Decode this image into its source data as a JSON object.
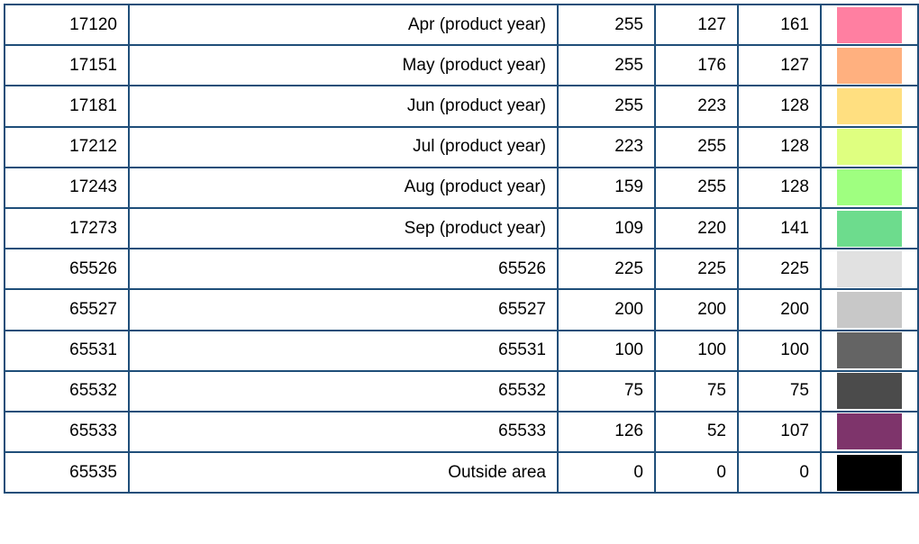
{
  "rows": [
    {
      "code": "17120",
      "label": "Apr (product year)",
      "r": "255",
      "g": "127",
      "b": "161",
      "color": "#FF7FA1"
    },
    {
      "code": "17151",
      "label": "May (product year)",
      "r": "255",
      "g": "176",
      "b": "127",
      "color": "#FFB07F"
    },
    {
      "code": "17181",
      "label": "Jun (product year)",
      "r": "255",
      "g": "223",
      "b": "128",
      "color": "#FFDF80"
    },
    {
      "code": "17212",
      "label": "Jul (product year)",
      "r": "223",
      "g": "255",
      "b": "128",
      "color": "#DFFF80"
    },
    {
      "code": "17243",
      "label": "Aug (product year)",
      "r": "159",
      "g": "255",
      "b": "128",
      "color": "#9FFF80"
    },
    {
      "code": "17273",
      "label": "Sep (product year)",
      "r": "109",
      "g": "220",
      "b": "141",
      "color": "#6DDC8D"
    },
    {
      "code": "65526",
      "label": "65526",
      "r": "225",
      "g": "225",
      "b": "225",
      "color": "#E1E1E1"
    },
    {
      "code": "65527",
      "label": "65527",
      "r": "200",
      "g": "200",
      "b": "200",
      "color": "#C8C8C8"
    },
    {
      "code": "65531",
      "label": "65531",
      "r": "100",
      "g": "100",
      "b": "100",
      "color": "#646464"
    },
    {
      "code": "65532",
      "label": "65532",
      "r": "75",
      "g": "75",
      "b": "75",
      "color": "#4B4B4B"
    },
    {
      "code": "65533",
      "label": "65533",
      "r": "126",
      "g": "52",
      "b": "107",
      "color": "#7E346B"
    },
    {
      "code": "65535",
      "label": "Outside area",
      "r": "0",
      "g": "0",
      "b": "0",
      "color": "#000000"
    }
  ]
}
